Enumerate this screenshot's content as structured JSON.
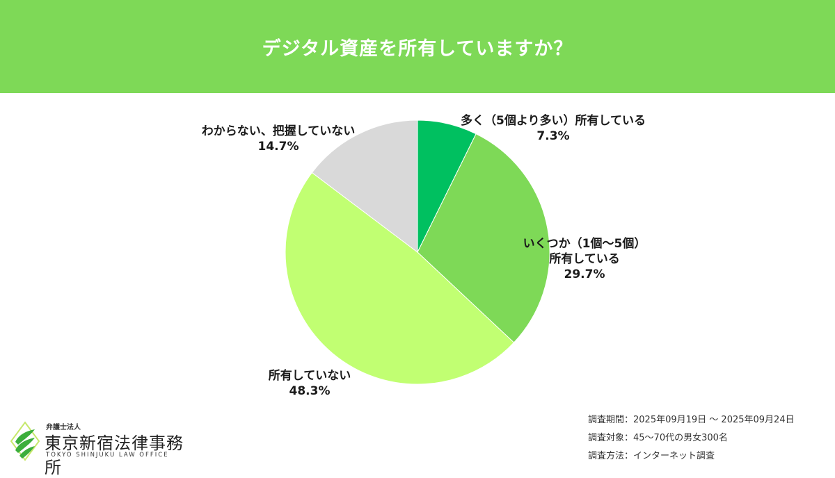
{
  "header": {
    "title": "デジタル資産を所有していますか？"
  },
  "chart_data": {
    "type": "pie",
    "title": "デジタル資産を所有していますか？",
    "start": "top, clockwise",
    "slices": [
      {
        "label": "多く（5個より多い）所有している",
        "label_lines": [
          "多く（5個より多い）所有している"
        ],
        "value": 7.3,
        "display": "7.3%",
        "color": "#00c060"
      },
      {
        "label": "いくつか（1個〜5個）所有している",
        "label_lines": [
          "いくつか（1個〜5個）",
          "所有している"
        ],
        "value": 29.7,
        "display": "29.7%",
        "color": "#7ed957"
      },
      {
        "label": "所有していない",
        "label_lines": [
          "所有していない"
        ],
        "value": 48.3,
        "display": "48.3%",
        "color": "#c1ff72"
      },
      {
        "label": "わからない、把握していない",
        "label_lines": [
          "わからない、把握していない"
        ],
        "value": 14.7,
        "display": "14.7%",
        "color": "#d9d9d9"
      }
    ]
  },
  "survey": {
    "period": "調査期間：2025年09月19日 〜 2025年09月24日",
    "target": "調査対象：45〜70代の男女300名",
    "method": "調査方法：インターネット調査"
  },
  "logo": {
    "small": "弁護士法人",
    "name": "東京新宿法律事務所",
    "en": "TOKYO SHINJUKU LAW OFFICE"
  },
  "colors": {
    "header": "#7ed957"
  }
}
